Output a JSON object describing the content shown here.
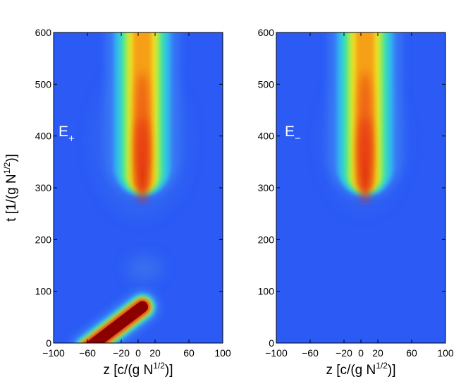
{
  "chart_data": [
    {
      "type": "heatmap",
      "panel_label": "E",
      "panel_label_sub": "+",
      "xlabel": "z [c/(g N",
      "xlabel_sup": "1/2",
      "xlabel_end": ")]",
      "ylabel": "t [1/(g N",
      "ylabel_sup": "1/2",
      "ylabel_end": ")]",
      "xlim": [
        -100,
        100
      ],
      "ylim": [
        0,
        600
      ],
      "xticks": [
        -100,
        -60,
        -20,
        0,
        20,
        60,
        100
      ],
      "yticks": [
        0,
        100,
        200,
        300,
        400,
        500,
        600
      ],
      "colormap": "jet",
      "features": [
        {
          "kind": "beam",
          "z_center": 5,
          "t_start": 300,
          "t_end": 600,
          "peak": 0.85
        },
        {
          "kind": "pulse",
          "t_start": 0,
          "t_end": 70,
          "z_at_start": -60,
          "z_at_end": 5,
          "peak": 1.0
        }
      ]
    },
    {
      "type": "heatmap",
      "panel_label": "E",
      "panel_label_sub": "−",
      "xlabel": "z [c/(g N",
      "xlabel_sup": "1/2",
      "xlabel_end": ")]",
      "xlim": [
        -100,
        100
      ],
      "ylim": [
        0,
        600
      ],
      "xticks": [
        -100,
        -60,
        -20,
        0,
        20,
        60,
        100
      ],
      "yticks": [
        0,
        100,
        200,
        300,
        400,
        500,
        600
      ],
      "colormap": "jet",
      "features": [
        {
          "kind": "beam",
          "z_center": 5,
          "t_start": 300,
          "t_end": 600,
          "peak": 0.85
        }
      ]
    }
  ]
}
